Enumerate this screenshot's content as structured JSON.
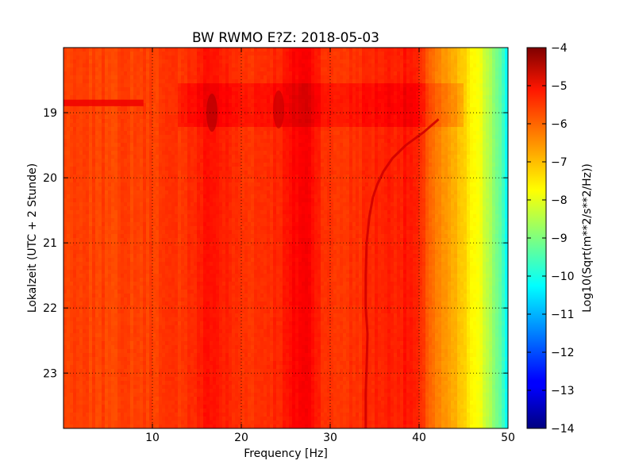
{
  "chart_data": {
    "type": "heatmap",
    "title": "BW RWMO E?Z: 2018-05-03",
    "xlabel": "Frequency [Hz]",
    "ylabel": "Lokalzeit (UTC + 2 Stunde)",
    "xlim": [
      0,
      50
    ],
    "ylim": [
      18.0,
      23.85
    ],
    "y_inverted": true,
    "x_ticks": [
      10,
      20,
      30,
      40,
      50
    ],
    "x_tick_labels": [
      "10",
      "20",
      "30",
      "40",
      "50"
    ],
    "y_ticks": [
      19,
      20,
      21,
      22,
      23
    ],
    "y_tick_labels": [
      "19",
      "20",
      "21",
      "22",
      "23"
    ],
    "grid": true,
    "colormap": "jet",
    "colorbar": {
      "label": "Log10(Sqrt(m**2/s**2/Hz))",
      "min": -14,
      "max": -4,
      "ticks": [
        -4,
        -5,
        -6,
        -7,
        -8,
        -9,
        -10,
        -11,
        -12,
        -13,
        -14
      ],
      "tick_labels": [
        "−4",
        "−5",
        "−6",
        "−7",
        "−8",
        "−9",
        "−10",
        "−11",
        "−12",
        "−13",
        "−14"
      ]
    },
    "spectral_profile": {
      "frequency_hz": [
        0,
        5,
        10,
        13,
        15,
        16.5,
        18,
        20,
        22,
        24,
        25,
        26,
        27,
        28,
        29,
        30,
        32,
        34,
        36,
        38,
        39,
        40,
        41,
        42,
        43,
        44,
        45,
        46,
        47,
        48,
        49,
        50
      ],
      "log10_psd": [
        -5.9,
        -5.9,
        -5.85,
        -5.75,
        -5.6,
        -5.35,
        -5.55,
        -5.75,
        -5.7,
        -5.6,
        -5.5,
        -5.3,
        -5.15,
        -5.3,
        -5.6,
        -5.8,
        -5.75,
        -5.65,
        -5.55,
        -5.5,
        -5.45,
        -5.7,
        -6.1,
        -6.5,
        -6.8,
        -7.0,
        -7.3,
        -7.7,
        -8.0,
        -8.5,
        -9.2,
        -10.3
      ]
    },
    "features": [
      {
        "type": "broadband_increase",
        "time_start": 18.55,
        "time_end": 19.2,
        "freq_start": 13,
        "freq_end": 45,
        "delta_log10": 0.3
      },
      {
        "type": "transient_band",
        "time_start": 18.8,
        "time_end": 18.9,
        "freq_start": 0,
        "freq_end": 9,
        "log10_psd": -5.1
      },
      {
        "type": "transient_blob",
        "time_center": 19.0,
        "freq_center": 16.7,
        "log10_psd": -4.5
      },
      {
        "type": "transient_blob",
        "time_center": 18.95,
        "freq_center": 24.2,
        "log10_psd": -4.7
      },
      {
        "type": "gliding_line",
        "times": [
          19.1,
          19.3,
          19.5,
          19.7,
          19.9,
          20.1,
          20.3,
          20.6,
          21.0,
          21.5,
          22.0,
          22.4,
          22.9,
          23.3,
          23.85
        ],
        "freqs": [
          42.2,
          40.5,
          38.5,
          37.0,
          36.0,
          35.3,
          34.8,
          34.4,
          34.1,
          34.0,
          34.0,
          34.2,
          34.1,
          34.0,
          34.0
        ],
        "log10_psd": -4.8
      }
    ]
  }
}
